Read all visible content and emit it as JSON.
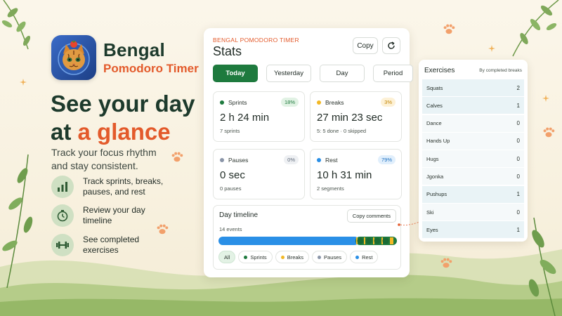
{
  "brand": {
    "name": "Bengal",
    "subtitle": "Pomodoro Timer"
  },
  "hero": {
    "title_part1": "See your day",
    "title_part2": "at ",
    "title_accent": "a glance",
    "description": "Track your focus rhythm and stay consistent."
  },
  "features": [
    {
      "icon": "bar-chart-icon",
      "label": "Track sprints, breaks, pauses, and rest"
    },
    {
      "icon": "stopwatch-icon",
      "label": "Review your day timeline"
    },
    {
      "icon": "dumbbell-icon",
      "label": "See completed exercises"
    }
  ],
  "stats_card": {
    "brand": "BENGAL POMODORO TIMER",
    "title": "Stats",
    "copy_label": "Copy",
    "refresh_icon": "refresh-icon",
    "tabs": [
      {
        "label": "Today",
        "active": true
      },
      {
        "label": "Yesterday",
        "active": false
      },
      {
        "label": "Day",
        "active": false
      },
      {
        "label": "Period",
        "active": false
      }
    ],
    "sprints": {
      "label": "Sprints",
      "percent": "18%",
      "value": "2 h 24 min",
      "sub": "7 sprints",
      "color": "#1e7a3e"
    },
    "breaks": {
      "label": "Breaks",
      "percent": "3%",
      "value": "27 min 23 sec",
      "sub": "5: 5 done · 0 skipped",
      "color": "#f2b825"
    },
    "pauses": {
      "label": "Pauses",
      "percent": "0%",
      "value": "0 sec",
      "sub": "0 pauses",
      "color": "#8a95a8"
    },
    "rest": {
      "label": "Rest",
      "percent": "79%",
      "value": "10 h 31 min",
      "sub": "2 segments",
      "color": "#2a8fe6"
    }
  },
  "timeline": {
    "title": "Day timeline",
    "copy_label": "Copy comments",
    "events": "14 events",
    "legend": [
      {
        "label": "All",
        "color": ""
      },
      {
        "label": "Sprints",
        "color": "#1e7a3e"
      },
      {
        "label": "Breaks",
        "color": "#f2b825"
      },
      {
        "label": "Pauses",
        "color": "#8a95a8"
      },
      {
        "label": "Rest",
        "color": "#2a8fe6"
      }
    ]
  },
  "exercises": {
    "title": "Exercises",
    "sort_label": "By completed breaks",
    "items": [
      {
        "name": "Squats",
        "count": "2"
      },
      {
        "name": "Calves",
        "count": "1"
      },
      {
        "name": "Dance",
        "count": "0"
      },
      {
        "name": "Hands Up",
        "count": "0"
      },
      {
        "name": "Hugs",
        "count": "0"
      },
      {
        "name": "Jgonka",
        "count": "0"
      },
      {
        "name": "Pushups",
        "count": "1"
      },
      {
        "name": "Ski",
        "count": "0"
      },
      {
        "name": "Eyes",
        "count": "1"
      }
    ]
  },
  "colors": {
    "accent_green": "#1e7a3e",
    "accent_orange": "#e35a2b",
    "brand_dark": "#1d3a2c"
  }
}
